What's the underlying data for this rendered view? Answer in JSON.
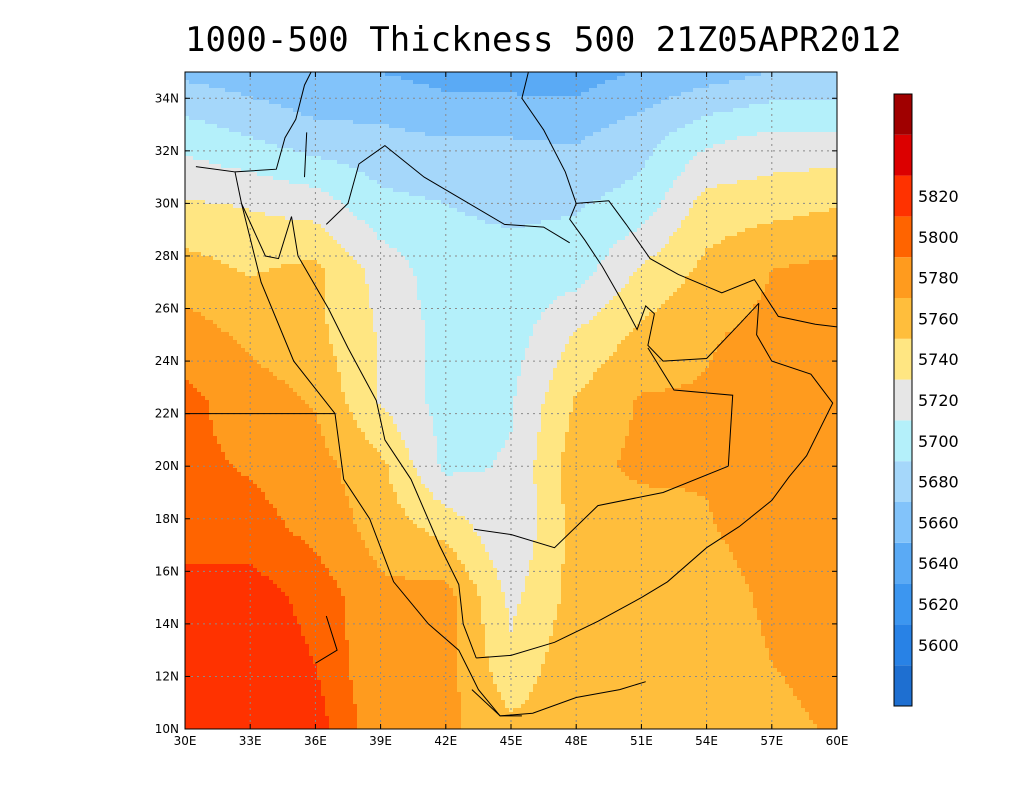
{
  "chart_data": {
    "type": "heatmap",
    "title": "1000-500 Thickness 500 21Z05APR2012",
    "x_ticks": [
      "30E",
      "33E",
      "36E",
      "39E",
      "42E",
      "45E",
      "48E",
      "51E",
      "54E",
      "57E",
      "60E"
    ],
    "y_ticks": [
      "10N",
      "12N",
      "14N",
      "16N",
      "18N",
      "20N",
      "22N",
      "24N",
      "26N",
      "28N",
      "30N",
      "32N",
      "34N"
    ],
    "xlim": [
      30,
      60
    ],
    "ylim": [
      10,
      35
    ],
    "grid": true,
    "colorbar": {
      "levels": [
        5580,
        5600,
        5620,
        5640,
        5660,
        5680,
        5700,
        5720,
        5740,
        5760,
        5780,
        5800,
        5820,
        5840
      ],
      "labels": [
        "5600",
        "5620",
        "5640",
        "5660",
        "5680",
        "5700",
        "5720",
        "5740",
        "5760",
        "5780",
        "5800",
        "5820"
      ],
      "colors": [
        "#1e6fd1",
        "#2882e6",
        "#3c96f0",
        "#5aaaf5",
        "#82c3fa",
        "#a5d7fa",
        "#b4f0fa",
        "#e6e6e6",
        "#ffe682",
        "#ffbe3c",
        "#ff9b1e",
        "#ff6400",
        "#ff3200",
        "#dc0000",
        "#a00000"
      ]
    },
    "field": {
      "lon_start": 30,
      "lon_step": 3,
      "lat_start": 10,
      "lat_step": 2.5,
      "values": [
        [
          5818,
          5816,
          5810,
          5765,
          5765,
          5745,
          5752,
          5750,
          5745,
          5748,
          5765
        ],
        [
          5818,
          5816,
          5800,
          5760,
          5768,
          5725,
          5755,
          5760,
          5745,
          5760,
          5775
        ],
        [
          5810,
          5812,
          5792,
          5765,
          5768,
          5715,
          5748,
          5752,
          5748,
          5765,
          5775
        ],
        [
          5790,
          5788,
          5775,
          5752,
          5735,
          5702,
          5748,
          5748,
          5758,
          5770,
          5772
        ],
        [
          5785,
          5778,
          5768,
          5745,
          5695,
          5702,
          5752,
          5765,
          5762,
          5770,
          5772
        ],
        [
          5785,
          5770,
          5758,
          5718,
          5692,
          5698,
          5742,
          5762,
          5762,
          5770,
          5770
        ],
        [
          5770,
          5755,
          5745,
          5718,
          5692,
          5690,
          5722,
          5745,
          5758,
          5765,
          5768
        ],
        [
          5748,
          5738,
          5745,
          5712,
          5688,
          5688,
          5690,
          5722,
          5745,
          5760,
          5765
        ],
        [
          5722,
          5718,
          5710,
          5685,
          5680,
          5675,
          5678,
          5688,
          5728,
          5732,
          5738
        ],
        [
          5692,
          5680,
          5668,
          5665,
          5660,
          5660,
          5658,
          5672,
          5695,
          5705,
          5705
        ],
        [
          5655,
          5648,
          5640,
          5640,
          5632,
          5630,
          5630,
          5642,
          5650,
          5660,
          5662
        ]
      ]
    }
  }
}
